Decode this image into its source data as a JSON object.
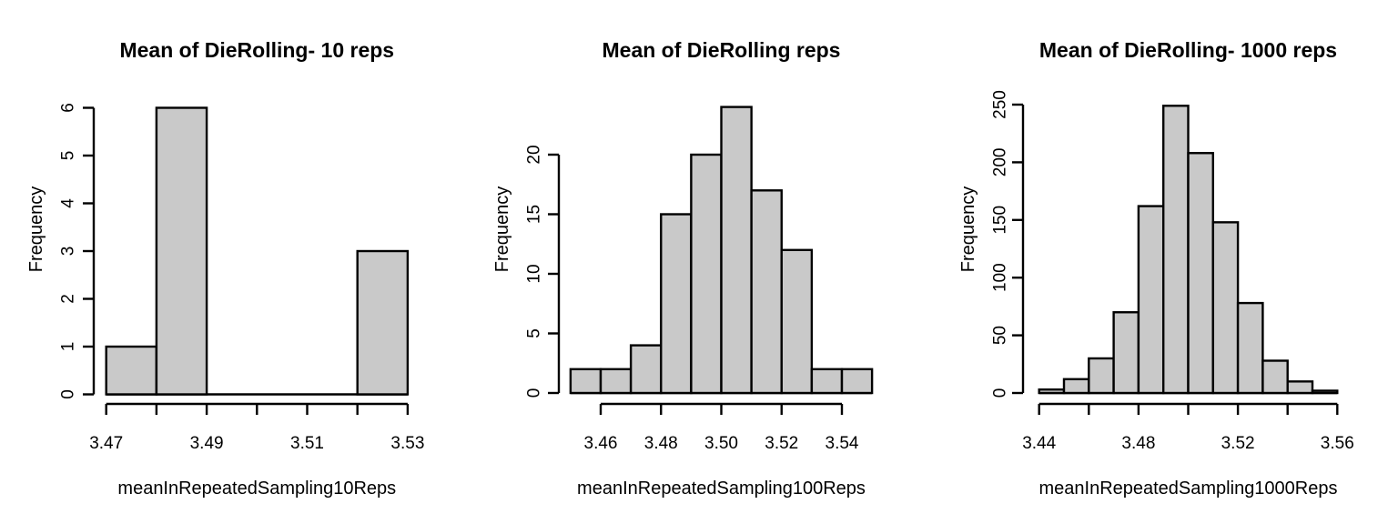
{
  "figure": {
    "background": "#ffffff",
    "description": "Three base-R histograms of die-rolling sample means"
  },
  "styles": {
    "bar_fill": "#c9c9c9",
    "bar_stroke": "#000000",
    "axis_color": "#000000",
    "text_color": "#000000"
  },
  "chart_data": [
    {
      "type": "bar",
      "subtype": "histogram",
      "title": "Mean of DieRolling- 10 reps",
      "xlabel": "meanInRepeatedSampling10Reps",
      "ylabel": "Frequency",
      "bin_start": 3.47,
      "bin_width": 0.01,
      "counts": [
        1,
        6,
        0,
        0,
        0,
        3
      ],
      "total_n": 10,
      "xlim": [
        3.47,
        3.53
      ],
      "ylim": [
        0,
        6
      ],
      "grid": false,
      "legend": null,
      "x_ticks": [
        {
          "v": 3.47,
          "label": "3.47"
        },
        {
          "v": 3.48,
          "label": ""
        },
        {
          "v": 3.49,
          "label": "3.49"
        },
        {
          "v": 3.5,
          "label": ""
        },
        {
          "v": 3.51,
          "label": "3.51"
        },
        {
          "v": 3.52,
          "label": ""
        },
        {
          "v": 3.53,
          "label": "3.53"
        }
      ],
      "y_ticks": [
        {
          "v": 0,
          "label": "0"
        },
        {
          "v": 1,
          "label": "1"
        },
        {
          "v": 2,
          "label": "2"
        },
        {
          "v": 3,
          "label": "3"
        },
        {
          "v": 4,
          "label": "4"
        },
        {
          "v": 5,
          "label": "5"
        },
        {
          "v": 6,
          "label": "6"
        }
      ]
    },
    {
      "type": "bar",
      "subtype": "histogram",
      "title": "Mean of DieRolling reps",
      "xlabel": "meanInRepeatedSampling100Reps",
      "ylabel": "Frequency",
      "bin_start": 3.45,
      "bin_width": 0.01,
      "counts": [
        2,
        2,
        4,
        15,
        20,
        24,
        17,
        12,
        2,
        2
      ],
      "total_n": 100,
      "xlim": [
        3.45,
        3.55
      ],
      "ylim": [
        0,
        24
      ],
      "grid": false,
      "legend": null,
      "x_ticks": [
        {
          "v": 3.46,
          "label": "3.46"
        },
        {
          "v": 3.48,
          "label": "3.48"
        },
        {
          "v": 3.5,
          "label": "3.50"
        },
        {
          "v": 3.52,
          "label": "3.52"
        },
        {
          "v": 3.54,
          "label": "3.54"
        }
      ],
      "y_ticks": [
        {
          "v": 0,
          "label": "0"
        },
        {
          "v": 5,
          "label": "5"
        },
        {
          "v": 10,
          "label": "10"
        },
        {
          "v": 15,
          "label": "15"
        },
        {
          "v": 20,
          "label": "20"
        }
      ]
    },
    {
      "type": "bar",
      "subtype": "histogram",
      "title": "Mean of DieRolling- 1000 reps",
      "xlabel": "meanInRepeatedSampling1000Reps",
      "ylabel": "Frequency",
      "bin_start": 3.44,
      "bin_width": 0.01,
      "counts": [
        3,
        12,
        30,
        70,
        162,
        249,
        208,
        148,
        78,
        28,
        10,
        2
      ],
      "total_n": 1000,
      "xlim": [
        3.44,
        3.56
      ],
      "ylim": [
        0,
        250
      ],
      "grid": false,
      "legend": null,
      "x_ticks": [
        {
          "v": 3.44,
          "label": "3.44"
        },
        {
          "v": 3.46,
          "label": ""
        },
        {
          "v": 3.48,
          "label": "3.48"
        },
        {
          "v": 3.5,
          "label": ""
        },
        {
          "v": 3.52,
          "label": "3.52"
        },
        {
          "v": 3.54,
          "label": ""
        },
        {
          "v": 3.56,
          "label": "3.56"
        }
      ],
      "y_ticks": [
        {
          "v": 0,
          "label": "0"
        },
        {
          "v": 50,
          "label": "50"
        },
        {
          "v": 100,
          "label": "100"
        },
        {
          "v": 150,
          "label": "150"
        },
        {
          "v": 200,
          "label": "200"
        },
        {
          "v": 250,
          "label": "250"
        }
      ]
    }
  ]
}
